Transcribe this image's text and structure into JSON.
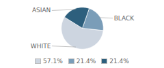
{
  "chart_data": {
    "type": "pie",
    "categories": [
      "WHITE",
      "BLACK",
      "ASIAN"
    ],
    "values": [
      57.1,
      21.4,
      21.4
    ],
    "value_labels": [
      "57.1%",
      "21.4%",
      "21.4%"
    ],
    "colors": [
      "#cdd5e0",
      "#7a9db8",
      "#2d5f7d"
    ],
    "legend": "bottom"
  }
}
